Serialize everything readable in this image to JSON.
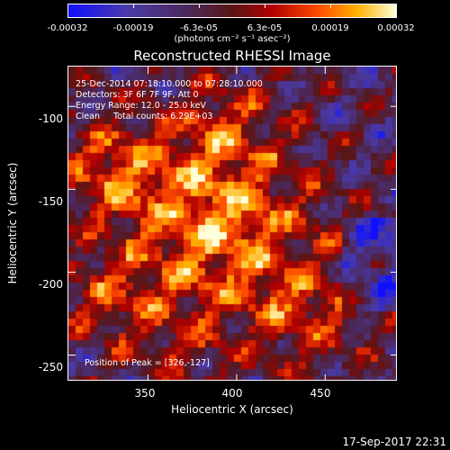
{
  "colorbar": {
    "ticks": [
      "-0.00032",
      "-0.00019",
      "-6.3e-05",
      "6.3e-05",
      "0.00019",
      "0.00032"
    ],
    "tick_values": [
      -0.00032,
      -0.00019,
      -6.3e-05,
      6.3e-05,
      0.00019,
      0.00032
    ],
    "units": "(photons cm⁻² s⁻¹ asec⁻²)"
  },
  "chart_data": {
    "type": "heatmap",
    "title": "Reconstructed RHESSI Image",
    "xlabel": "Heliocentric X (arcsec)",
    "ylabel": "Heliocentric Y (arcsec)",
    "xlim": [
      305,
      491
    ],
    "ylim": [
      -266,
      -76
    ],
    "xticks": [
      "350",
      "400",
      "450"
    ],
    "xtick_values": [
      350,
      400,
      450
    ],
    "yticks": [
      "-100",
      "-150",
      "-200",
      "-250"
    ],
    "ytick_values": [
      -100,
      -150,
      -200,
      -250
    ],
    "peak_x": 326,
    "peak_y": -127
  },
  "annotations": {
    "line1": "25-Dec-2014 07:18:10.000 to 07:28:10.000",
    "line2": "Detectors: 3F 6F 7F 9F, Att 0",
    "line3": "Energy Range: 12.0 - 25.0 keV",
    "line4": "Clean     Total counts: 6.29E+03",
    "peak": "Position of Peak = [326,-127]"
  },
  "timestamp": "17-Sep-2017 22:31"
}
